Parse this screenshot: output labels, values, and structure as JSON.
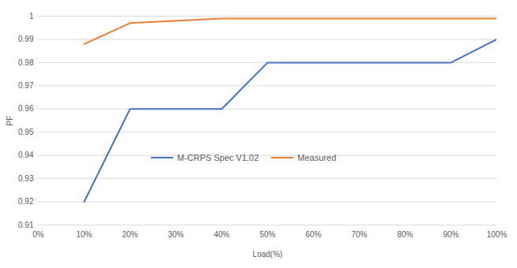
{
  "chart_data": {
    "type": "line",
    "x_label": "Load(%)",
    "y_label": "PF",
    "x": [
      10,
      20,
      40,
      50,
      90,
      100
    ],
    "series": [
      {
        "name": "M-CRPS Spec V1.02",
        "color": "#4472c4",
        "values": [
          0.92,
          0.96,
          0.96,
          0.98,
          0.98,
          0.99
        ]
      },
      {
        "name": "Measured",
        "color": "#ed7d31",
        "values": [
          0.988,
          0.997,
          0.999,
          0.999,
          0.999,
          0.999
        ]
      }
    ],
    "xlim": [
      0,
      100
    ],
    "xticks": [
      {
        "value": 0,
        "label": "0%"
      },
      {
        "value": 10,
        "label": "10%"
      },
      {
        "value": 20,
        "label": "20%"
      },
      {
        "value": 30,
        "label": "30%"
      },
      {
        "value": 40,
        "label": "40%"
      },
      {
        "value": 50,
        "label": "50%"
      },
      {
        "value": 60,
        "label": "60%"
      },
      {
        "value": 70,
        "label": "70%"
      },
      {
        "value": 80,
        "label": "80%"
      },
      {
        "value": 90,
        "label": "90%"
      },
      {
        "value": 100,
        "label": "100%"
      }
    ],
    "ylim": [
      0.91,
      1
    ],
    "yticks": [
      0.91,
      0.92,
      0.93,
      0.94,
      0.95,
      0.96,
      0.97,
      0.98,
      0.99,
      1
    ],
    "grid": true,
    "legend": "center"
  }
}
